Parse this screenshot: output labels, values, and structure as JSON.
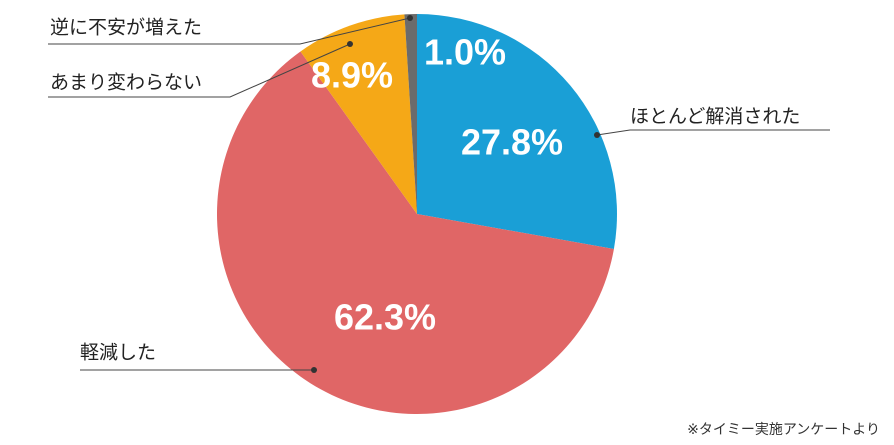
{
  "chart_data": {
    "type": "pie",
    "categories": [
      "ほとんど解消された",
      "軽減した",
      "あまり変わらない",
      "逆に不安が増えた"
    ],
    "values": [
      27.8,
      62.3,
      8.9,
      1.0
    ],
    "value_labels": [
      "27.8%",
      "62.3%",
      "8.9%",
      "1.0%"
    ],
    "colors": [
      "#1a9fd6",
      "#e06666",
      "#f5a817",
      "#6b6b6b"
    ],
    "note": "※タイミー実施アンケートより"
  }
}
